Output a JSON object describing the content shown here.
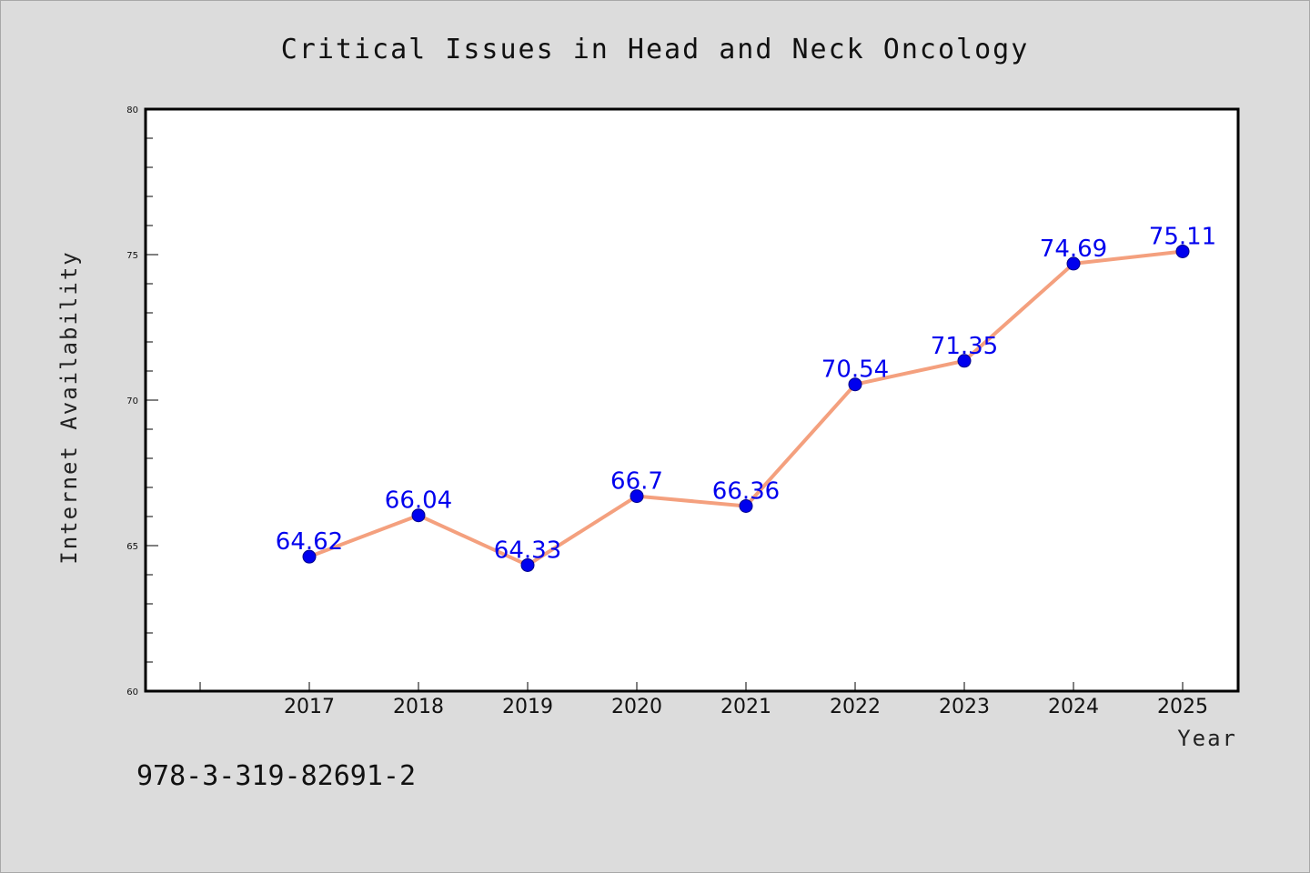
{
  "footer": {
    "isbn": "978-3-319-82691-2"
  },
  "colors": {
    "line": "#f4a07e",
    "marker": "#0000ee",
    "label": "#0000ee",
    "background": "#dcdcdc",
    "plot_area": "#ffffff"
  },
  "chart_data": {
    "type": "line",
    "title": "Critical Issues in Head and Neck Oncology",
    "xlabel": "Year",
    "ylabel": "Internet Availability",
    "categories": [
      "2017",
      "2018",
      "2019",
      "2020",
      "2021",
      "2022",
      "2023",
      "2024",
      "2025"
    ],
    "series": [
      {
        "values": [
          64.62,
          66.04,
          64.33,
          66.7,
          66.36,
          70.54,
          71.35,
          74.69,
          75.11
        ],
        "labels": [
          "64.62",
          "66.04",
          "64.33",
          "66.7",
          "66.36",
          "70.54",
          "71.35",
          "74.69",
          "75.11"
        ]
      }
    ],
    "ylim": [
      60,
      80
    ],
    "yticks": [
      60,
      65,
      70,
      75,
      80
    ],
    "ytick_labels": [
      "60",
      "65",
      "70",
      "75",
      "80"
    ],
    "grid": false,
    "legend": "none"
  }
}
